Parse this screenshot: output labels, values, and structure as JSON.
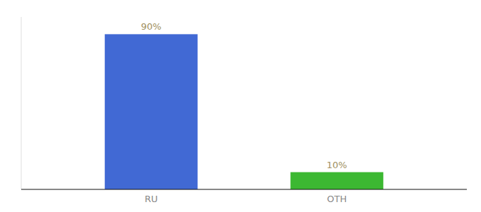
{
  "chart_data": {
    "type": "bar",
    "categories": [
      "RU",
      "OTH"
    ],
    "values": [
      90,
      10
    ],
    "value_labels": [
      "90%",
      "10%"
    ],
    "colors": [
      "#4169d4",
      "#3cb832"
    ],
    "ylim": [
      0,
      100
    ],
    "data_labels": true,
    "tick_labels": "x",
    "grid": false
  }
}
